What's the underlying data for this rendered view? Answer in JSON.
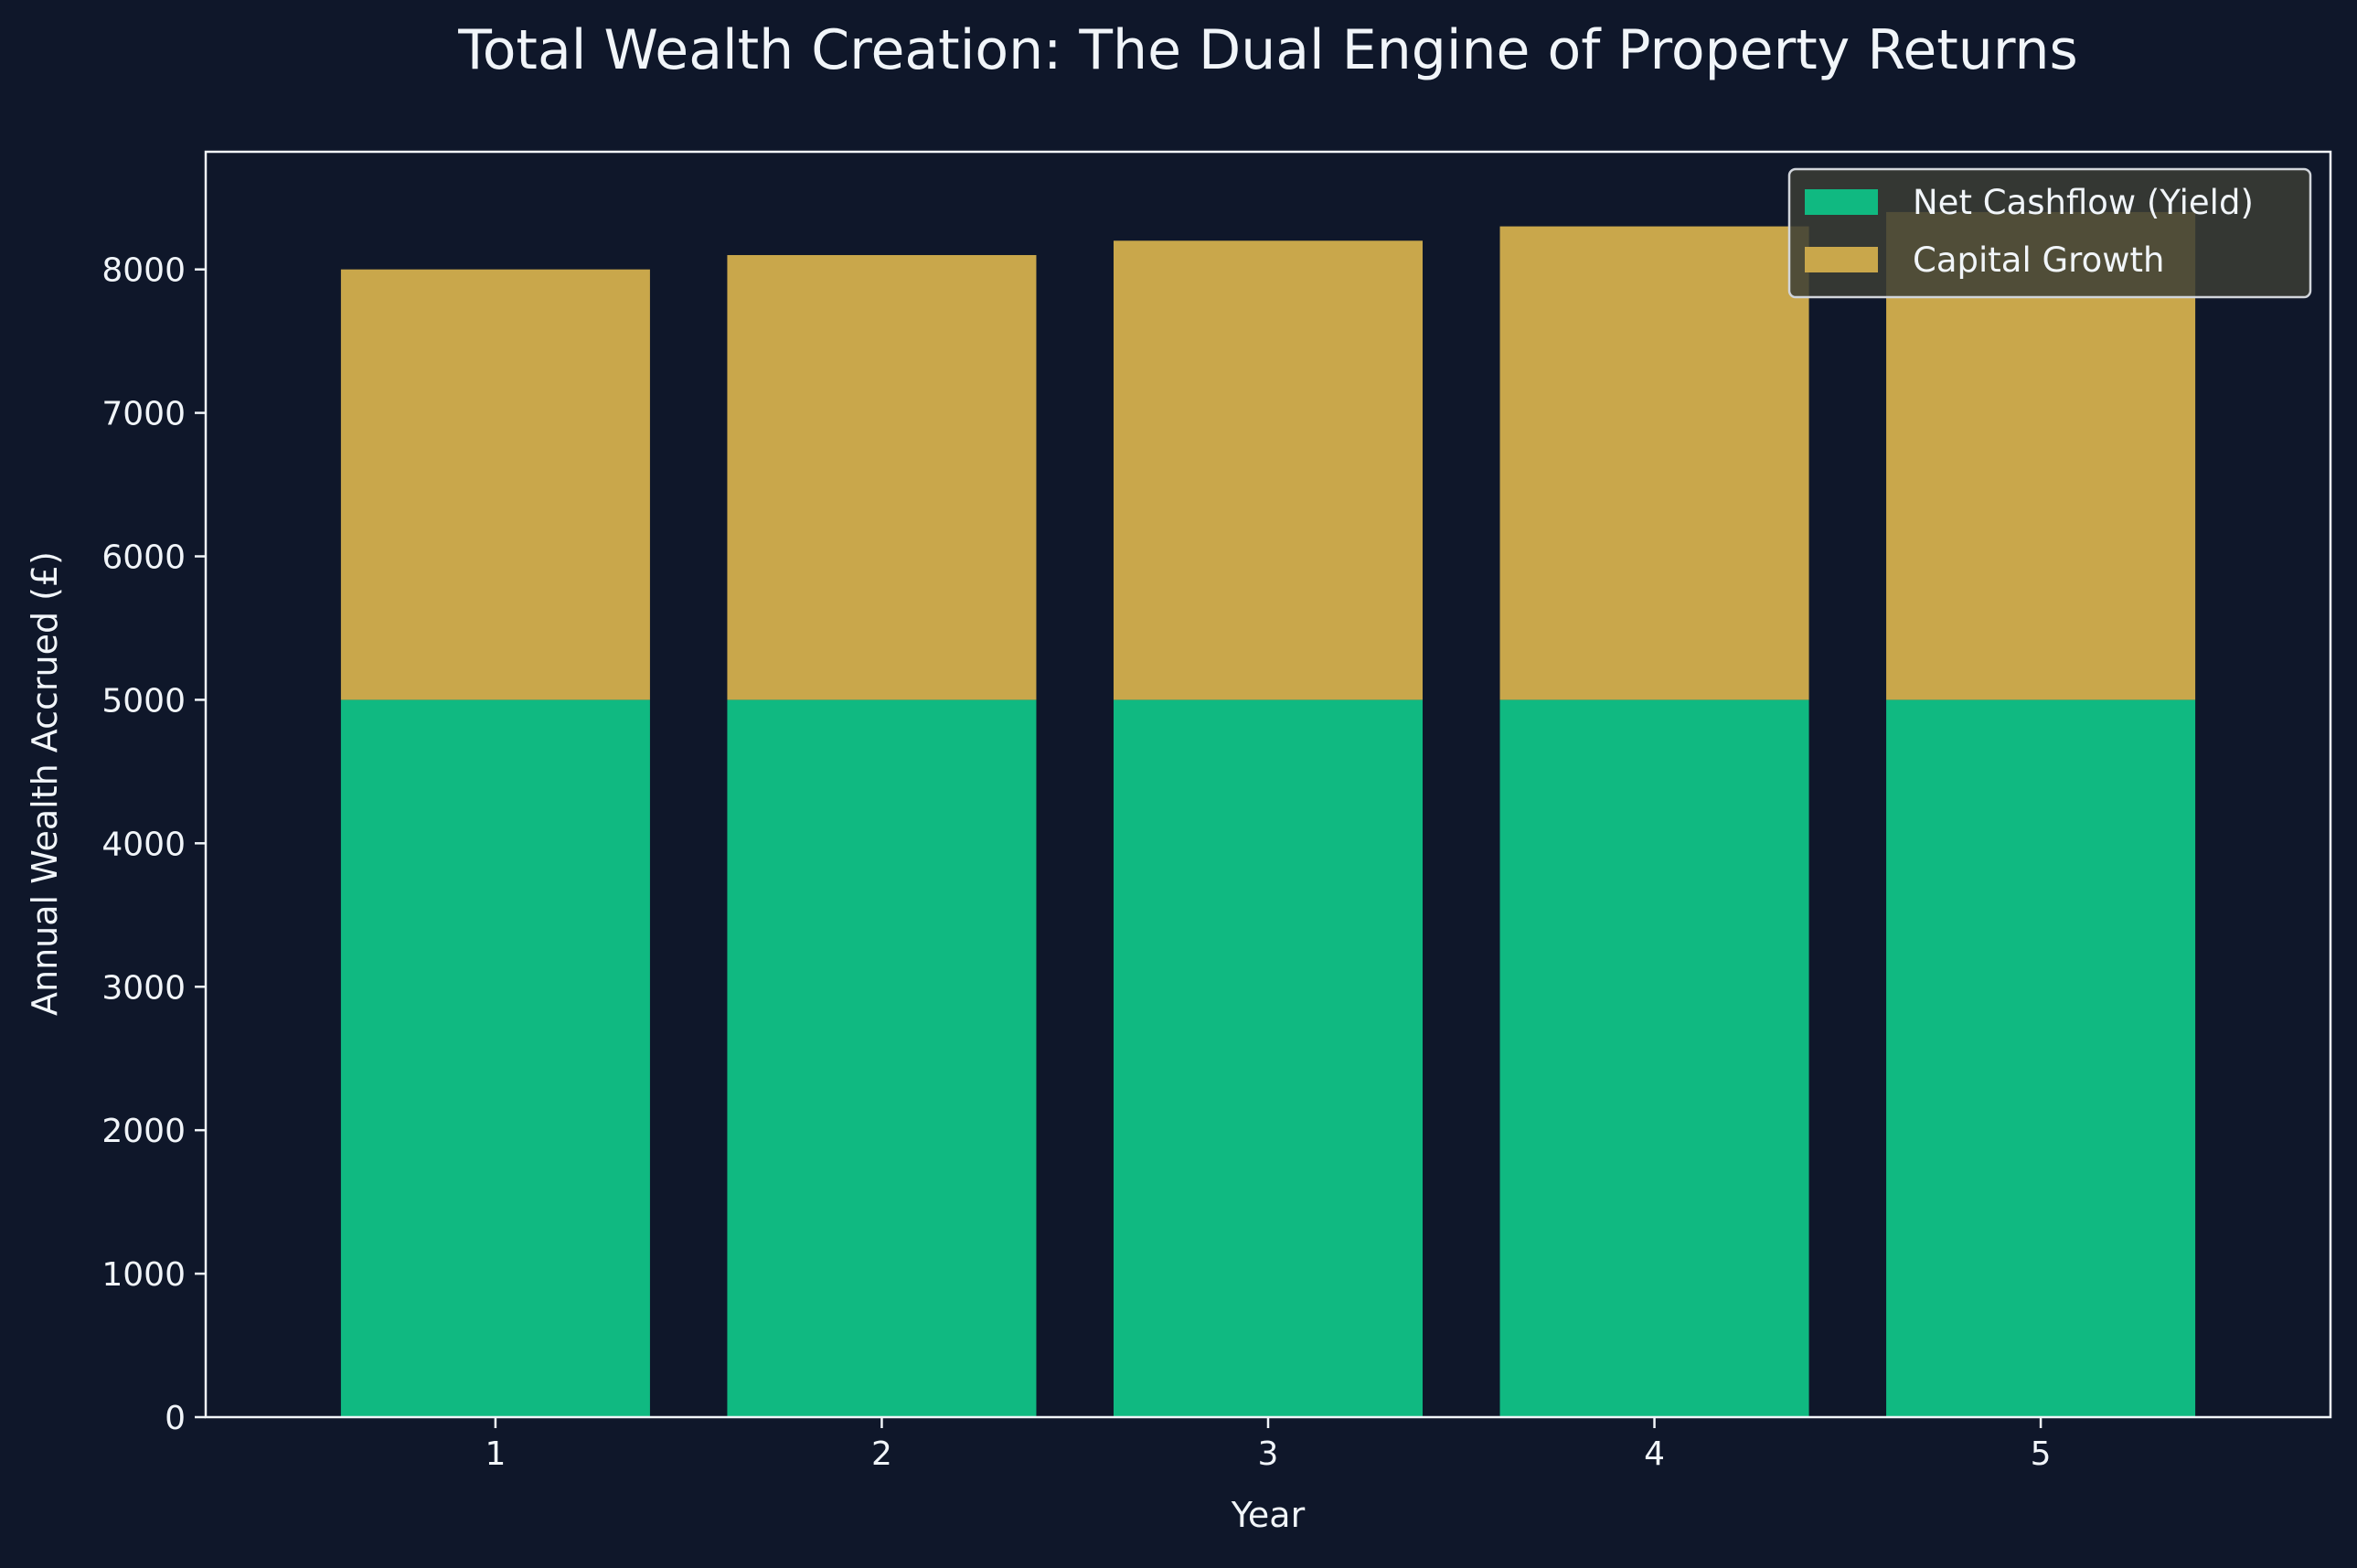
{
  "chart_data": {
    "type": "bar",
    "stacked": true,
    "title": "Total Wealth Creation: The Dual Engine of Property Returns",
    "xlabel": "Year",
    "ylabel": "Annual Wealth Accrued (£)",
    "categories": [
      "1",
      "2",
      "3",
      "4",
      "5"
    ],
    "series": [
      {
        "name": "Net Cashflow (Yield)",
        "color": "#10b981",
        "values": [
          5000,
          5000,
          5000,
          5000,
          5000
        ]
      },
      {
        "name": "Capital Growth",
        "color": "#c9a74b",
        "values": [
          3000,
          3100,
          3200,
          3300,
          3400
        ]
      }
    ],
    "yticks": [
      0,
      1000,
      2000,
      3000,
      4000,
      5000,
      6000,
      7000,
      8000
    ],
    "ylim": [
      0,
      8820
    ],
    "grid": false,
    "legend_position": "top-right",
    "background_color": "#0f172a",
    "text_color": "#f1f5f9",
    "axis_color": "#f1f5f9",
    "legend_background": "#3b3d35",
    "legend_border": "#d1d5db"
  }
}
